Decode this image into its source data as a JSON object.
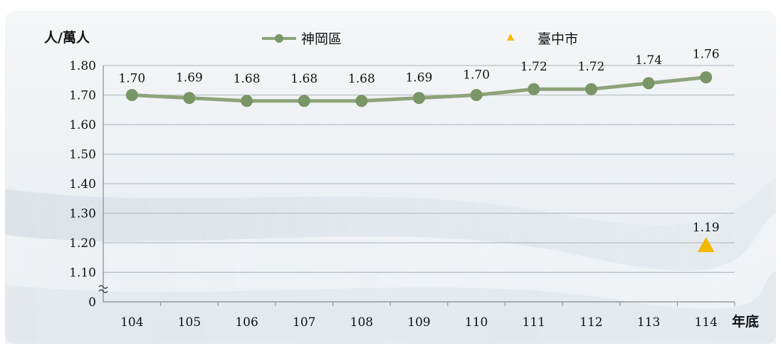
{
  "chart_data": {
    "type": "line",
    "ylabel": "人/萬人",
    "xlabel": "年底",
    "categories": [
      "104",
      "105",
      "106",
      "107",
      "108",
      "109",
      "110",
      "111",
      "112",
      "113",
      "114"
    ],
    "y_ticks": [
      "0",
      "1.10",
      "1.20",
      "1.30",
      "1.40",
      "1.50",
      "1.60",
      "1.70",
      "1.80"
    ],
    "ylim": [
      1.0,
      1.8
    ],
    "axis_break": true,
    "series": [
      {
        "name": "神岡區",
        "marker": "circle",
        "color": "#7a9566",
        "values": [
          1.7,
          1.69,
          1.68,
          1.68,
          1.68,
          1.69,
          1.7,
          1.72,
          1.72,
          1.74,
          1.76
        ],
        "data_labels": [
          "1.70",
          "1.69",
          "1.68",
          "1.68",
          "1.68",
          "1.69",
          "1.70",
          "1.72",
          "1.72",
          "1.74",
          "1.76"
        ]
      },
      {
        "name": "臺中市",
        "marker": "triangle",
        "color": "#f5b800",
        "points": [
          {
            "x": "114",
            "y": 1.19
          }
        ],
        "data_labels": [
          "1.19"
        ]
      }
    ],
    "legend_position": "top",
    "grid": true
  }
}
